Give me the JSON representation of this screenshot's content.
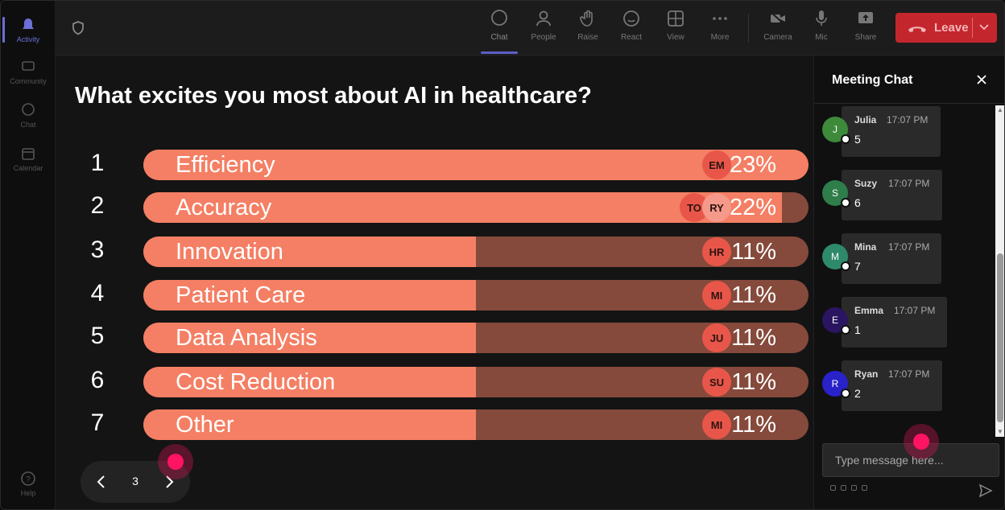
{
  "rail": {
    "items": [
      {
        "label": "Activity",
        "icon": "bell-icon"
      },
      {
        "label": "Community",
        "icon": "community-icon"
      },
      {
        "label": "Chat",
        "icon": "chat-icon"
      },
      {
        "label": "Calendar",
        "icon": "calendar-icon"
      }
    ],
    "help": "Help"
  },
  "toolbar": {
    "chat": "Chat",
    "people": "People",
    "raise": "Raise",
    "react": "React",
    "view": "View",
    "more": "More",
    "camera": "Camera",
    "mic": "Mic",
    "share": "Share",
    "leave": "Leave"
  },
  "poll": {
    "title": "What excites you most about AI in healthcare?",
    "options": [
      {
        "num": "1",
        "label": "Efficiency",
        "pct_text": "23%",
        "fill": 1.0,
        "avatars": [
          "EM"
        ]
      },
      {
        "num": "2",
        "label": "Accuracy",
        "pct_text": "22%",
        "fill": 0.96,
        "avatars": [
          "TO",
          "RY"
        ]
      },
      {
        "num": "3",
        "label": "Innovation",
        "pct_text": "11%",
        "fill": 0.5,
        "avatars": [
          "HR"
        ]
      },
      {
        "num": "4",
        "label": "Patient Care",
        "pct_text": "11%",
        "fill": 0.5,
        "avatars": [
          "MI"
        ]
      },
      {
        "num": "5",
        "label": "Data Analysis",
        "pct_text": "11%",
        "fill": 0.5,
        "avatars": [
          "JU"
        ]
      },
      {
        "num": "6",
        "label": "Cost Reduction",
        "pct_text": "11%",
        "fill": 0.5,
        "avatars": [
          "SU"
        ]
      },
      {
        "num": "7",
        "label": "Other",
        "pct_text": "11%",
        "fill": 0.5,
        "avatars": [
          "MI"
        ]
      }
    ],
    "page": "3"
  },
  "chat": {
    "title": "Meeting Chat",
    "messages": [
      {
        "initial": "J",
        "name": "Julia",
        "time": "17:07 PM",
        "text": "5",
        "color": "#3d8a3a"
      },
      {
        "initial": "S",
        "name": "Suzy",
        "time": "17:07 PM",
        "text": "6",
        "color": "#2e7d4a"
      },
      {
        "initial": "M",
        "name": "Mina",
        "time": "17:07 PM",
        "text": "7",
        "color": "#2e8a6a"
      },
      {
        "initial": "E",
        "name": "Emma",
        "time": "17:07 PM",
        "text": "1",
        "color": "#2a1560"
      },
      {
        "initial": "R",
        "name": "Ryan",
        "time": "17:07 PM",
        "text": "2",
        "color": "#2a22c9"
      }
    ],
    "placeholder": "Type message here..."
  },
  "colors": {
    "bar_fill": "#f47f64",
    "bar_track": "#854a3b",
    "leave": "#c4262e",
    "accent": "#5b5fc7"
  }
}
